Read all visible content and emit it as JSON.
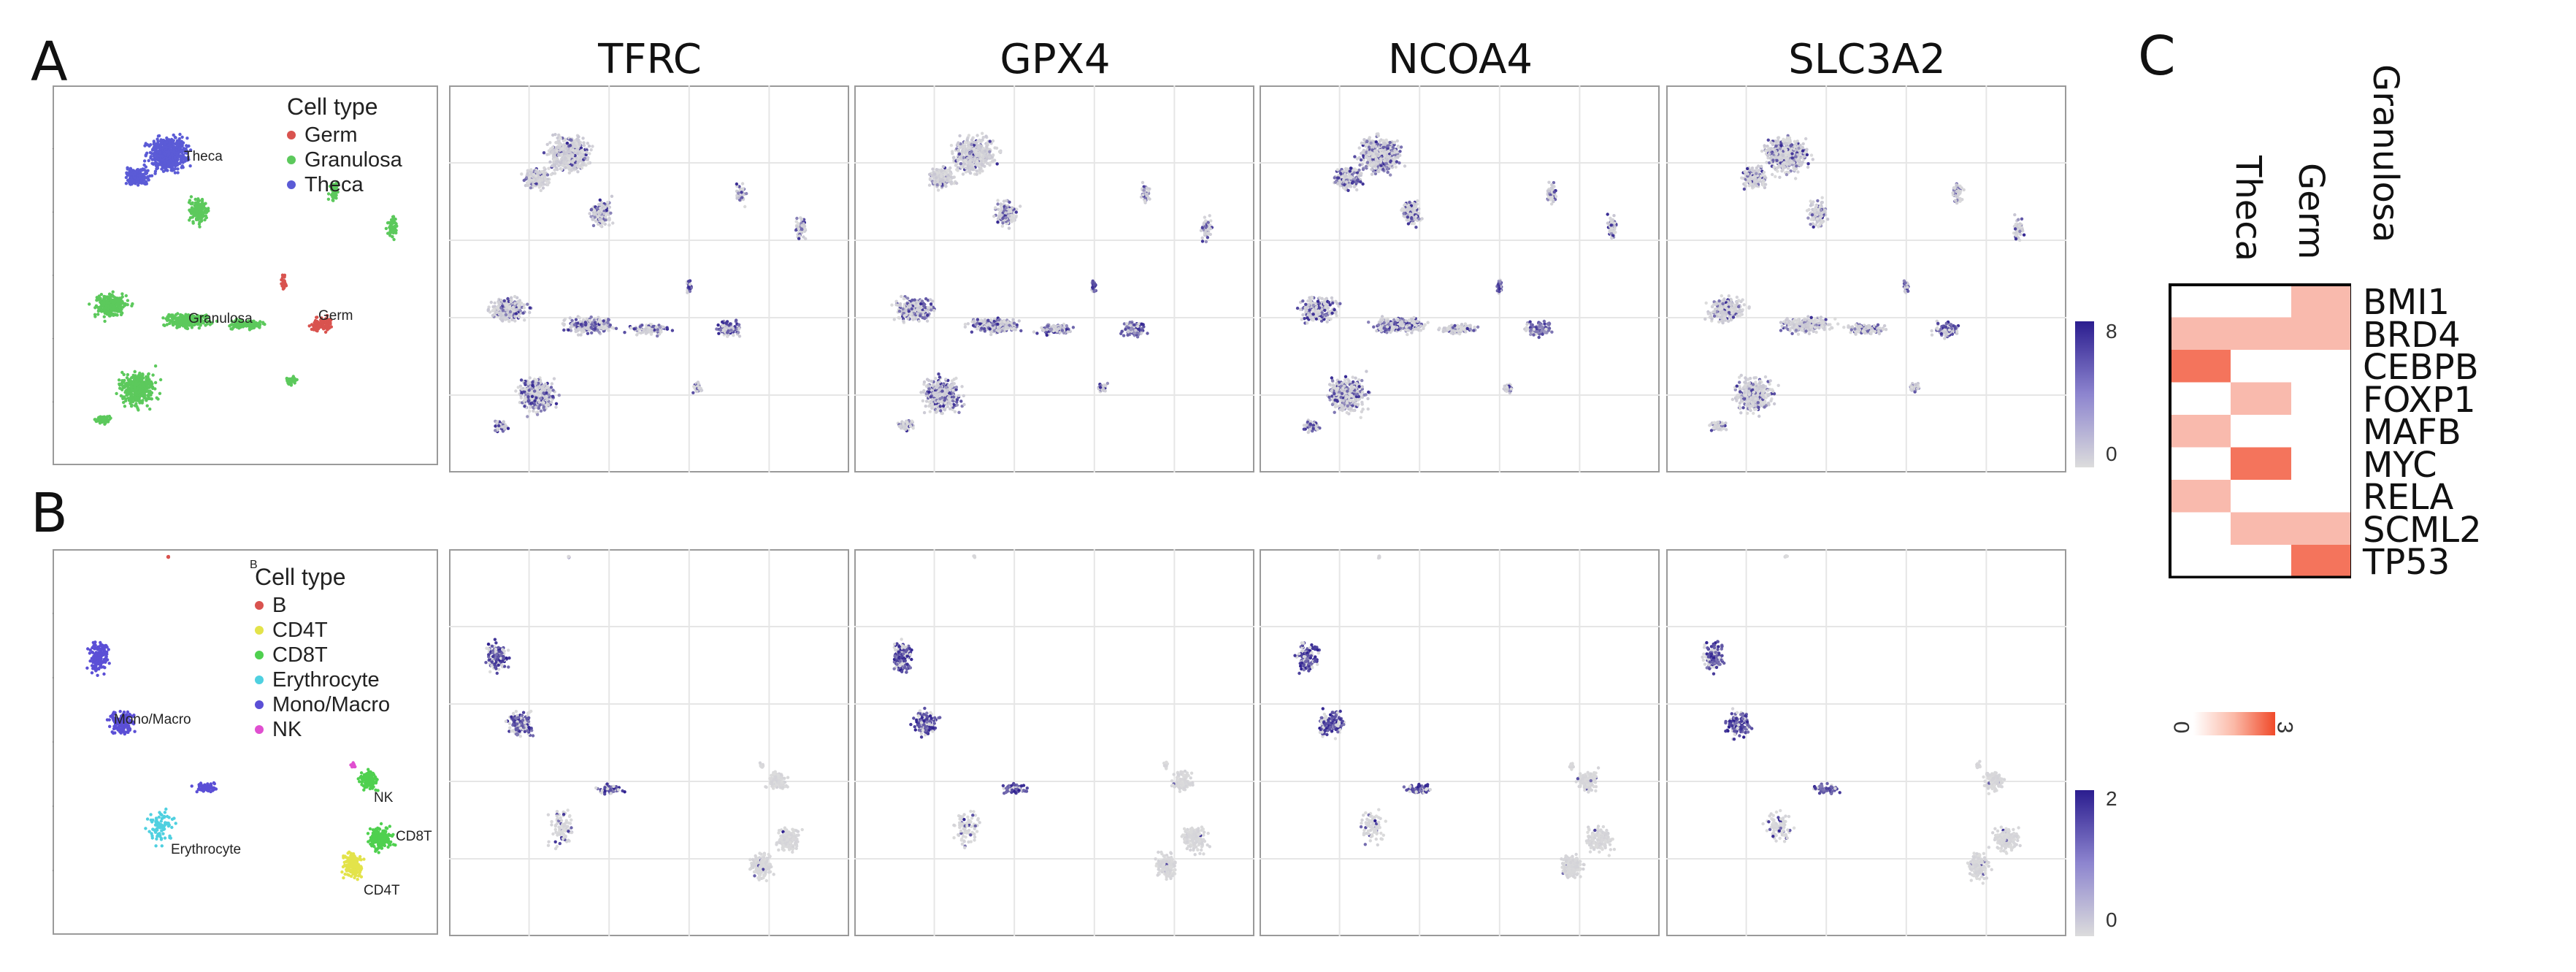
{
  "panels": {
    "a": "A",
    "b": "B",
    "c": "C"
  },
  "genes": [
    "TFRC",
    "GPX4",
    "NCOA4",
    "SLC3A2"
  ],
  "colors": {
    "germ": "#d9534f",
    "granulosa": "#5cc95c",
    "theca": "#5b5bd6",
    "B": "#d9534f",
    "CD4T": "#e3e34a",
    "CD8T": "#4fd04f",
    "Erythrocyte": "#4fd0e0",
    "MonoMacro": "#5b4fd6",
    "NK": "#e04fd0",
    "expr_low": "#dcdcdc",
    "expr_high": "#2b1d8f",
    "heat_low": "#ffffff",
    "heat_high": "#f04a2a"
  },
  "panel_a": {
    "legend_title": "Cell type",
    "legend": [
      "Germ",
      "Granulosa",
      "Theca"
    ],
    "cluster_labels": [
      "Theca",
      "Granulosa",
      "Germ"
    ],
    "scale_max": "8",
    "scale_min": "0"
  },
  "panel_b": {
    "legend_title": "Cell type",
    "legend": [
      "B",
      "CD4T",
      "CD8T",
      "Erythrocyte",
      "Mono/Macro",
      "NK"
    ],
    "cluster_labels": [
      "B",
      "Mono/Macro",
      "Erythrocyte",
      "NK",
      "CD8T",
      "CD4T"
    ],
    "scale_max": "2",
    "scale_min": "0"
  },
  "chart_data": {
    "type": "heatmap",
    "columns": [
      "Theca",
      "Germ",
      "Granulosa"
    ],
    "rows": [
      "BMI1",
      "BRD4",
      "CEBPB",
      "FOXP1",
      "MAFB",
      "MYC",
      "RELA",
      "SCML2",
      "TP53"
    ],
    "values": [
      [
        0,
        0,
        1
      ],
      [
        1,
        1,
        1
      ],
      [
        2,
        0,
        0
      ],
      [
        0,
        1,
        0
      ],
      [
        1,
        0,
        0
      ],
      [
        0,
        2,
        0
      ],
      [
        1,
        0,
        0
      ],
      [
        0,
        1,
        1
      ],
      [
        0,
        0,
        2
      ]
    ],
    "scale_min": "0",
    "scale_max": "3",
    "range": [
      0,
      3
    ]
  }
}
